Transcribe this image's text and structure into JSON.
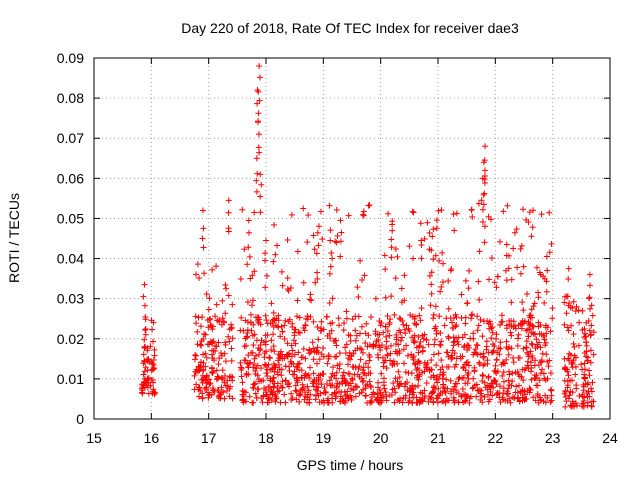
{
  "chart_data": {
    "type": "scatter",
    "title": "Day 220 of 2018, Rate Of TEC Index for receiver dae3",
    "xlabel": "GPS time / hours",
    "ylabel": "ROTI / TECUs",
    "xlim": [
      15,
      24
    ],
    "ylim": [
      0,
      0.09
    ],
    "x_ticks": [
      "15",
      "16",
      "17",
      "18",
      "19",
      "20",
      "21",
      "22",
      "23",
      "24"
    ],
    "y_ticks": [
      "0",
      "0.01",
      "0.02",
      "0.03",
      "0.04",
      "0.05",
      "0.06",
      "0.07",
      "0.08",
      "0.09"
    ],
    "grid": true,
    "marker": "+",
    "color": "#ff0000",
    "series": [
      {
        "name": "ROTI",
        "segments": [
          {
            "x_range": [
              15.82,
              16.08
            ],
            "y_base": [
              0.006,
              0.02
            ],
            "y_peak": 0.0335
          },
          {
            "x_range": [
              16.75,
              17.42
            ],
            "y_base": [
              0.005,
              0.027
            ],
            "y_peak": 0.0545
          },
          {
            "x_range": [
              17.55,
              23.0
            ],
            "y_base": [
              0.004,
              0.026
            ],
            "y_peak": 0.088
          },
          {
            "x_range": [
              23.2,
              23.72
            ],
            "y_base": [
              0.003,
              0.025
            ],
            "y_peak": 0.0375
          }
        ],
        "peaks": [
          {
            "x": 15.88,
            "y": 0.0335
          },
          {
            "x": 16.9,
            "y": 0.052
          },
          {
            "x": 17.35,
            "y": 0.0545
          },
          {
            "x": 17.88,
            "y": 0.088
          },
          {
            "x": 17.85,
            "y": 0.082
          },
          {
            "x": 17.86,
            "y": 0.074
          },
          {
            "x": 17.84,
            "y": 0.065
          },
          {
            "x": 17.9,
            "y": 0.061
          },
          {
            "x": 17.7,
            "y": 0.0495
          },
          {
            "x": 18.0,
            "y": 0.0445
          },
          {
            "x": 19.3,
            "y": 0.0495
          },
          {
            "x": 19.12,
            "y": 0.0445
          },
          {
            "x": 20.2,
            "y": 0.0485
          },
          {
            "x": 20.7,
            "y": 0.0488
          },
          {
            "x": 20.9,
            "y": 0.0455
          },
          {
            "x": 21.82,
            "y": 0.068
          },
          {
            "x": 21.8,
            "y": 0.064
          },
          {
            "x": 21.78,
            "y": 0.06
          },
          {
            "x": 21.8,
            "y": 0.0535
          },
          {
            "x": 22.2,
            "y": 0.0435
          },
          {
            "x": 22.9,
            "y": 0.0405
          },
          {
            "x": 23.28,
            "y": 0.0375
          },
          {
            "x": 23.65,
            "y": 0.036
          }
        ]
      }
    ]
  }
}
